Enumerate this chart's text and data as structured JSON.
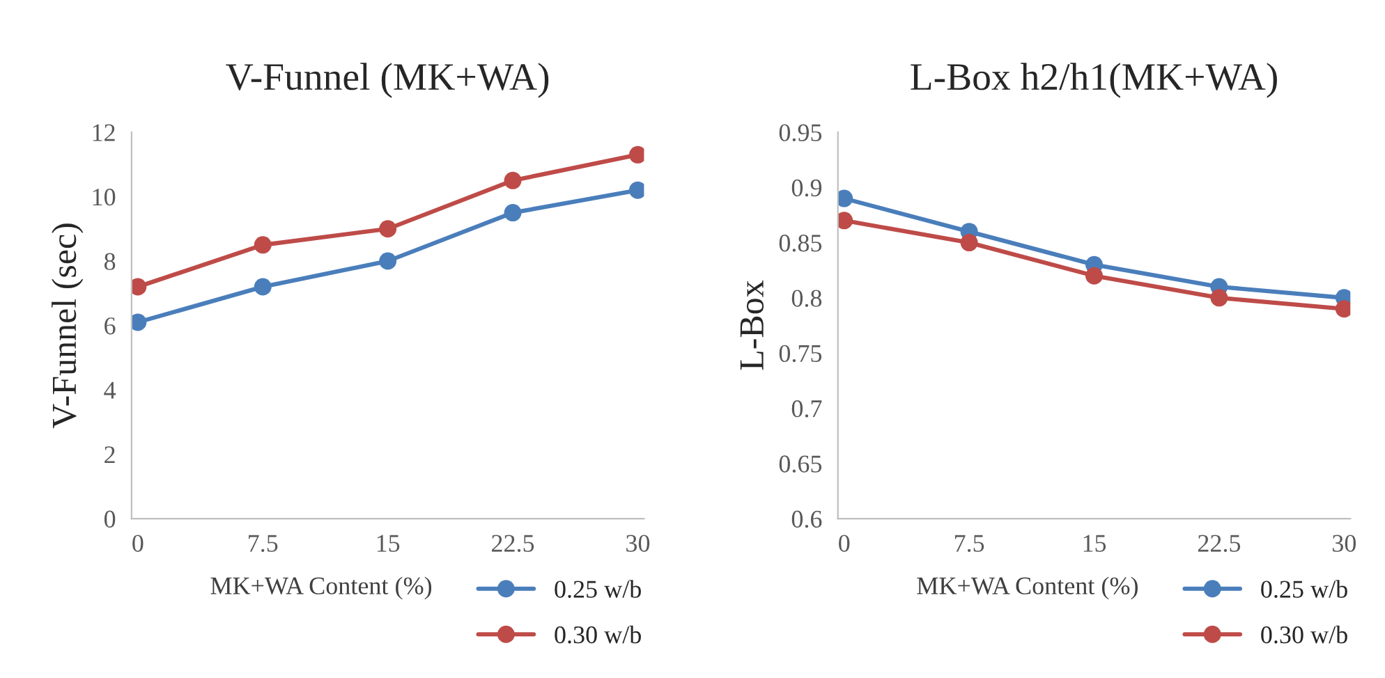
{
  "chart_data": [
    {
      "type": "line",
      "title": "V-Funnel (MK+WA)",
      "xlabel": "MK+WA Content (%)",
      "ylabel": "V-Funnel (sec)",
      "categories": [
        "0",
        "7.5",
        "15",
        "22.5",
        "30"
      ],
      "series": [
        {
          "name": "0.25 w/b",
          "color": "#4a7ebb",
          "values": [
            6.1,
            7.2,
            8.0,
            9.5,
            10.2
          ]
        },
        {
          "name": "0.30 w/b",
          "color": "#be4b48",
          "values": [
            7.2,
            8.5,
            9.0,
            10.5,
            11.3
          ]
        }
      ],
      "ylim": [
        0,
        12
      ],
      "yticks": [
        0,
        2,
        4,
        6,
        8,
        10,
        12
      ],
      "grid": false,
      "legend": "bottom right",
      "marker": "circle",
      "line_style": "solid"
    },
    {
      "type": "line",
      "title": "L-Box h2/h1(MK+WA)",
      "xlabel": "MK+WA Content (%)",
      "ylabel": "L-Box",
      "categories": [
        "0",
        "7.5",
        "15",
        "22.5",
        "30"
      ],
      "series": [
        {
          "name": "0.25 w/b",
          "color": "#4a7ebb",
          "values": [
            0.89,
            0.86,
            0.83,
            0.81,
            0.8
          ]
        },
        {
          "name": "0.30 w/b",
          "color": "#be4b48",
          "values": [
            0.87,
            0.85,
            0.82,
            0.8,
            0.79
          ]
        }
      ],
      "ylim": [
        0.6,
        0.95
      ],
      "yticks": [
        0.6,
        0.65,
        0.7,
        0.75,
        0.8,
        0.85,
        0.9,
        0.95
      ],
      "grid": false,
      "legend": "bottom right",
      "marker": "circle",
      "line_style": "solid"
    }
  ]
}
